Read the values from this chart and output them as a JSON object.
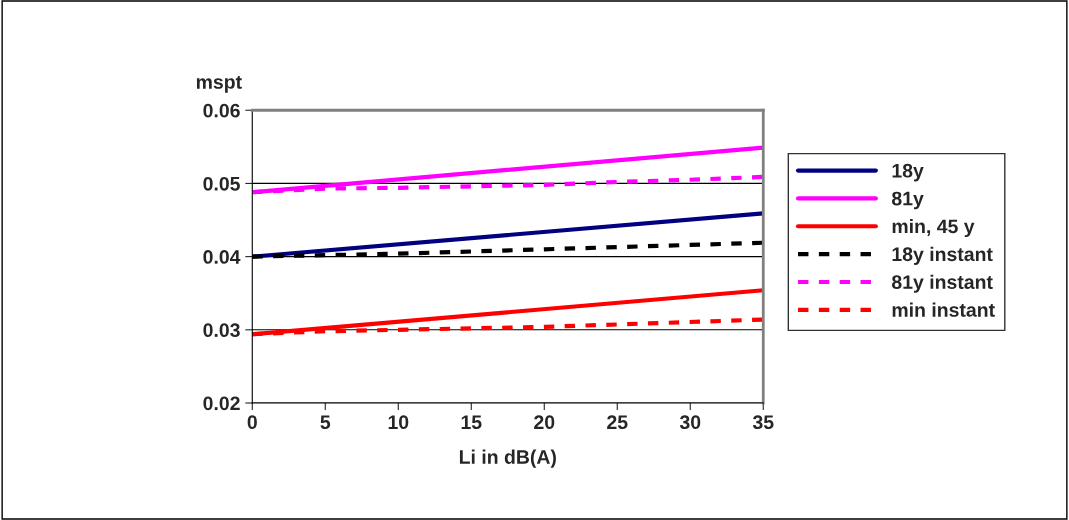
{
  "chart_data": {
    "type": "line",
    "xlabel": "Li in dB(A)",
    "ylabel": "mspt",
    "xlim": [
      0,
      35
    ],
    "xticks": [
      0,
      5,
      10,
      15,
      20,
      25,
      30,
      35
    ],
    "ylim": [
      0.02,
      0.06
    ],
    "yticks": [
      0.02,
      0.03,
      0.04,
      0.05,
      0.06
    ],
    "grid": "y",
    "legend": "right",
    "marker": "none",
    "series": [
      {
        "name": "18y",
        "color": "#000080",
        "line_style": "solid",
        "x": [
          0,
          35
        ],
        "values": [
          0.04,
          0.0459
        ]
      },
      {
        "name": "81y",
        "color": "#ff00ff",
        "line_style": "solid",
        "x": [
          0,
          35
        ],
        "values": [
          0.0488,
          0.0549
        ]
      },
      {
        "name": "min, 45 y",
        "color": "#ff0000",
        "line_style": "solid",
        "x": [
          0,
          35
        ],
        "values": [
          0.0294,
          0.0354
        ]
      },
      {
        "name": "18y instant",
        "color": "#000000",
        "line_style": "dashed",
        "x": [
          0,
          10,
          20,
          35
        ],
        "values": [
          0.04,
          0.0404,
          0.041,
          0.0419
        ]
      },
      {
        "name": "81y instant",
        "color": "#ff00ff",
        "line_style": "dashed",
        "x": [
          0,
          5,
          10,
          15,
          20,
          25,
          30,
          35
        ],
        "values": [
          0.0488,
          0.0493,
          0.0494,
          0.0496,
          0.0498,
          0.0502,
          0.0505,
          0.0509
        ]
      },
      {
        "name": "min instant",
        "color": "#ff0000",
        "line_style": "dashed",
        "x": [
          0,
          5,
          10,
          20,
          35
        ],
        "values": [
          0.0294,
          0.0298,
          0.03,
          0.0304,
          0.0314
        ]
      }
    ]
  }
}
